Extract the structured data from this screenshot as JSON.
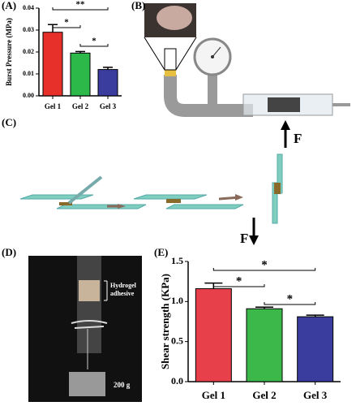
{
  "chart_data": [
    {
      "type": "bar",
      "y_label": "Burst Pressure (MPa)",
      "categories": [
        "Gel 1",
        "Gel 2",
        "Gel 3"
      ],
      "values": [
        0.029,
        0.0195,
        0.012
      ],
      "errors": [
        0.0035,
        0.0007,
        0.001
      ],
      "colors": [
        "#e8302a",
        "#2db84a",
        "#3a3d9e"
      ],
      "ylim": [
        0,
        0.04
      ],
      "yticks": [
        {
          "value": 0,
          "label": "0.00"
        },
        {
          "value": 0.01,
          "label": "0.01"
        },
        {
          "value": 0.02,
          "label": "0.02"
        },
        {
          "value": 0.03,
          "label": "0.03"
        },
        {
          "value": 0.04,
          "label": "0.04"
        }
      ],
      "annotations": [
        "**",
        "*",
        "*"
      ]
    },
    {
      "type": "bar",
      "y_label": "Shear strength (KPa)",
      "categories": [
        "Gel 1",
        "Gel 2",
        "Gel 3"
      ],
      "values": [
        1.16,
        0.91,
        0.81
      ],
      "errors": [
        0.07,
        0.02,
        0.02
      ],
      "colors": [
        "#e8404a",
        "#3cb84a",
        "#3a3d9e"
      ],
      "ylim": [
        0,
        1.5
      ],
      "yticks": [
        {
          "value": 0,
          "label": "0.0"
        },
        {
          "value": 0.5,
          "label": "0.5"
        },
        {
          "value": 1,
          "label": "1.0"
        },
        {
          "value": 1.5,
          "label": "1.5"
        }
      ],
      "annotations": [
        "*",
        "*",
        "*"
      ]
    }
  ],
  "figure": {
    "panel_labels": [
      "(A)",
      "(B)",
      "(C)",
      "(D)",
      "(E)"
    ],
    "force_labels": [
      "F",
      "F"
    ],
    "hydrogel_label": [
      "Hydrogel",
      "adhesive"
    ],
    "weight_label": "200 g"
  }
}
